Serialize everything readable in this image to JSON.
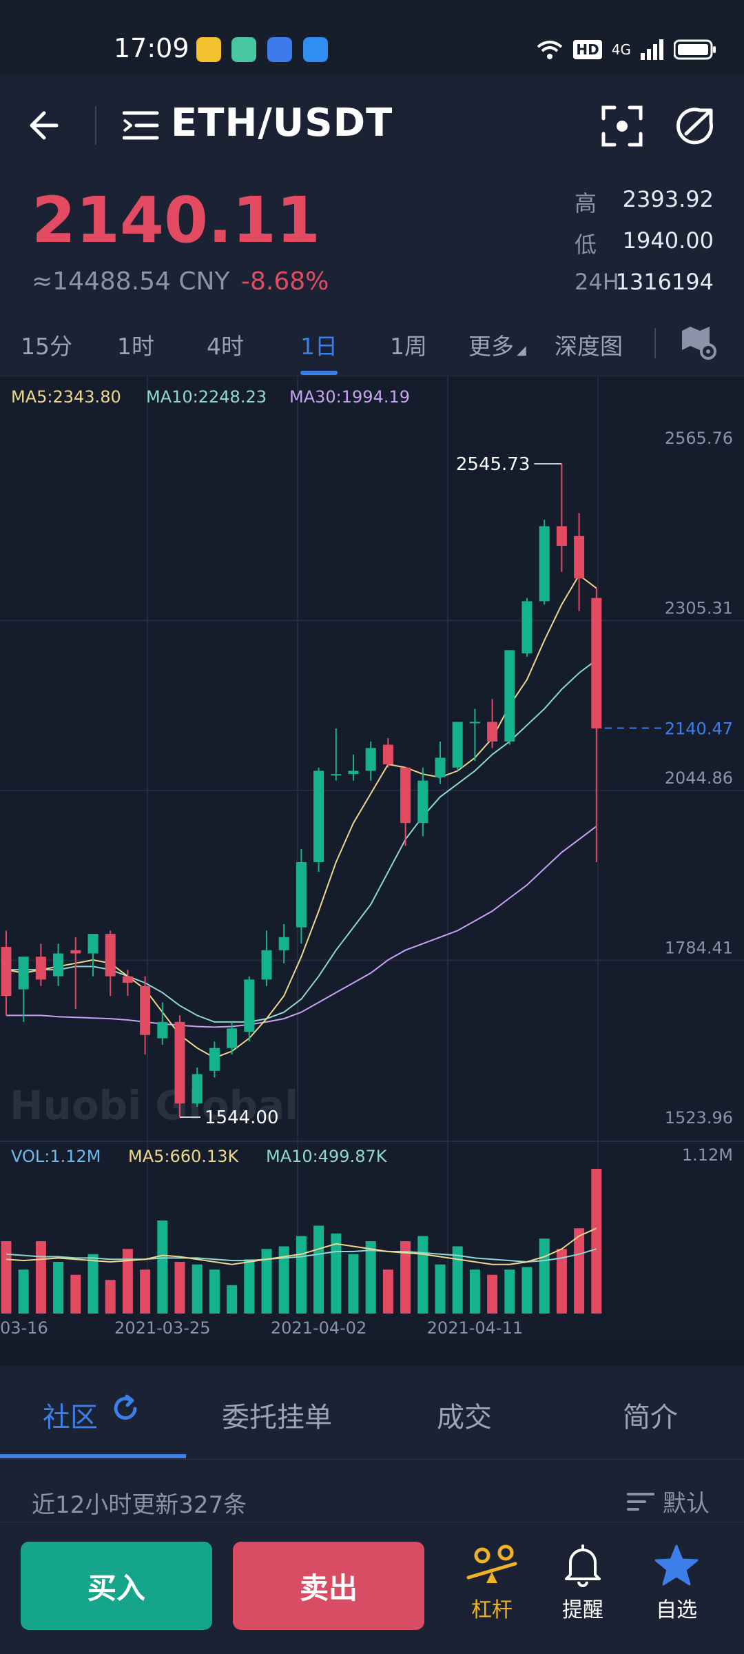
{
  "status_bar": {
    "time": "17:09",
    "hd_label": "HD",
    "network_label": "4G"
  },
  "header": {
    "pair": "ETH/USDT"
  },
  "ticker": {
    "price": "2140.11",
    "cny": "≈14488.54 CNY",
    "change": "-8.68%",
    "high_label": "高",
    "high": "2393.92",
    "low_label": "低",
    "low": "1940.00",
    "vol_label": "24H",
    "vol": "1316194"
  },
  "intervals": [
    "15分",
    "1时",
    "4时",
    "1日",
    "1周",
    "更多",
    "深度图"
  ],
  "active_interval": "1日",
  "colors": {
    "up": "#14b38e",
    "down": "#e24b62",
    "ma5": "#f0d88a",
    "ma10": "#8fd9d0",
    "ma30": "#c9a3f0",
    "accent": "#3d7fe8"
  },
  "chart_data": {
    "type": "candlestick",
    "watermark": "Huobi Global",
    "legend": {
      "ma5": "MA5:2343.80",
      "ma10": "MA10:2248.23",
      "ma30": "MA30:1994.19"
    },
    "y_ticks": [
      "2565.76",
      "2305.31",
      "2044.86",
      "1784.41",
      "1523.96"
    ],
    "y_range": [
      1523.96,
      2565.76
    ],
    "current_price_tag": "2140.47",
    "current_price": 2140.47,
    "max_label": "2545.73",
    "min_label": "1544.00",
    "x_labels": [
      "03-16",
      "2021-03-25",
      "2021-04-02",
      "2021-04-11"
    ],
    "x_label_index": [
      0,
      9,
      18,
      27
    ],
    "candles": [
      {
        "o": 1805,
        "h": 1830,
        "l": 1700,
        "c": 1730
      },
      {
        "o": 1740,
        "h": 1790,
        "l": 1690,
        "c": 1790
      },
      {
        "o": 1790,
        "h": 1810,
        "l": 1745,
        "c": 1755
      },
      {
        "o": 1760,
        "h": 1810,
        "l": 1745,
        "c": 1795
      },
      {
        "o": 1800,
        "h": 1820,
        "l": 1710,
        "c": 1795
      },
      {
        "o": 1795,
        "h": 1820,
        "l": 1760,
        "c": 1825
      },
      {
        "o": 1825,
        "h": 1830,
        "l": 1730,
        "c": 1760
      },
      {
        "o": 1760,
        "h": 1770,
        "l": 1730,
        "c": 1750
      },
      {
        "o": 1745,
        "h": 1760,
        "l": 1640,
        "c": 1670
      },
      {
        "o": 1665,
        "h": 1720,
        "l": 1655,
        "c": 1690
      },
      {
        "o": 1690,
        "h": 1700,
        "l": 1544,
        "c": 1565
      },
      {
        "o": 1565,
        "h": 1620,
        "l": 1560,
        "c": 1610
      },
      {
        "o": 1615,
        "h": 1660,
        "l": 1605,
        "c": 1650
      },
      {
        "o": 1650,
        "h": 1690,
        "l": 1640,
        "c": 1680
      },
      {
        "o": 1675,
        "h": 1760,
        "l": 1660,
        "c": 1755
      },
      {
        "o": 1755,
        "h": 1830,
        "l": 1745,
        "c": 1800
      },
      {
        "o": 1800,
        "h": 1840,
        "l": 1780,
        "c": 1820
      },
      {
        "o": 1835,
        "h": 1955,
        "l": 1810,
        "c": 1935
      },
      {
        "o": 1935,
        "h": 2080,
        "l": 1920,
        "c": 2075
      },
      {
        "o": 2070,
        "h": 2140,
        "l": 2060,
        "c": 2070
      },
      {
        "o": 2070,
        "h": 2100,
        "l": 2060,
        "c": 2075
      },
      {
        "o": 2075,
        "h": 2120,
        "l": 2060,
        "c": 2110
      },
      {
        "o": 2115,
        "h": 2125,
        "l": 2080,
        "c": 2085
      },
      {
        "o": 2080,
        "h": 2080,
        "l": 1960,
        "c": 1995
      },
      {
        "o": 1995,
        "h": 2080,
        "l": 1975,
        "c": 2060
      },
      {
        "o": 2065,
        "h": 2120,
        "l": 2055,
        "c": 2095
      },
      {
        "o": 2080,
        "h": 2150,
        "l": 2075,
        "c": 2150
      },
      {
        "o": 2150,
        "h": 2170,
        "l": 2090,
        "c": 2150
      },
      {
        "o": 2150,
        "h": 2185,
        "l": 2110,
        "c": 2120
      },
      {
        "o": 2120,
        "h": 2260,
        "l": 2115,
        "c": 2260
      },
      {
        "o": 2255,
        "h": 2340,
        "l": 2250,
        "c": 2335
      },
      {
        "o": 2335,
        "h": 2460,
        "l": 2330,
        "c": 2450
      },
      {
        "o": 2450,
        "h": 2545.73,
        "l": 2380,
        "c": 2420
      },
      {
        "o": 2435,
        "h": 2470,
        "l": 2320,
        "c": 2370
      },
      {
        "o": 2340,
        "h": 2355,
        "l": 1935,
        "c": 2140
      }
    ],
    "ma5": [
      1770,
      1765,
      1770,
      1775,
      1780,
      1785,
      1780,
      1760,
      1740,
      1705,
      1670,
      1650,
      1635,
      1645,
      1665,
      1695,
      1730,
      1790,
      1860,
      1935,
      1995,
      2040,
      2085,
      2080,
      2070,
      2065,
      2075,
      2095,
      2125,
      2175,
      2215,
      2275,
      2330,
      2375,
      2355
    ],
    "ma10": [
      1770,
      1770,
      1770,
      1770,
      1775,
      1775,
      1770,
      1760,
      1750,
      1735,
      1715,
      1700,
      1690,
      1690,
      1690,
      1695,
      1705,
      1725,
      1760,
      1800,
      1835,
      1870,
      1920,
      1970,
      2005,
      2035,
      2055,
      2075,
      2100,
      2120,
      2145,
      2170,
      2200,
      2225,
      2245
    ],
    "ma30": [
      1700,
      1700,
      1700,
      1698,
      1697,
      1696,
      1695,
      1693,
      1690,
      1687,
      1685,
      1683,
      1682,
      1683,
      1686,
      1690,
      1695,
      1705,
      1720,
      1735,
      1750,
      1765,
      1785,
      1800,
      1810,
      1820,
      1830,
      1845,
      1860,
      1880,
      1900,
      1925,
      1950,
      1970,
      1990
    ],
    "volume": {
      "legend": {
        "vol": "VOL:1.12M",
        "ma5": "MA5:660.13K",
        "ma10": "MA10:499.87K"
      },
      "max_tick": "1.12M",
      "max": 1.12,
      "values": [
        0.56,
        0.34,
        0.56,
        0.4,
        0.3,
        0.46,
        0.26,
        0.5,
        0.34,
        0.72,
        0.4,
        0.38,
        0.34,
        0.22,
        0.42,
        0.5,
        0.52,
        0.6,
        0.68,
        0.62,
        0.46,
        0.56,
        0.34,
        0.56,
        0.6,
        0.38,
        0.52,
        0.34,
        0.3,
        0.34,
        0.36,
        0.58,
        0.5,
        0.66,
        1.12
      ],
      "ma5": [
        0.42,
        0.41,
        0.42,
        0.43,
        0.42,
        0.41,
        0.4,
        0.41,
        0.42,
        0.45,
        0.44,
        0.42,
        0.4,
        0.38,
        0.4,
        0.42,
        0.44,
        0.46,
        0.5,
        0.54,
        0.52,
        0.5,
        0.48,
        0.47,
        0.46,
        0.44,
        0.42,
        0.4,
        0.38,
        0.38,
        0.4,
        0.44,
        0.5,
        0.6,
        0.66
      ],
      "ma10": [
        0.46,
        0.45,
        0.44,
        0.44,
        0.43,
        0.43,
        0.42,
        0.42,
        0.42,
        0.43,
        0.43,
        0.43,
        0.42,
        0.41,
        0.41,
        0.42,
        0.43,
        0.44,
        0.46,
        0.48,
        0.48,
        0.49,
        0.48,
        0.48,
        0.47,
        0.46,
        0.45,
        0.43,
        0.42,
        0.41,
        0.4,
        0.41,
        0.43,
        0.46,
        0.5
      ]
    }
  },
  "bottom_tabs": [
    "社区",
    "委托挂单",
    "成交",
    "简介"
  ],
  "feed": {
    "update_text": "近12小时更新327条",
    "sort_label": "默认"
  },
  "actions": {
    "buy": "买入",
    "sell": "卖出",
    "leverage": "杠杆",
    "alert": "提醒",
    "favorite": "自选"
  }
}
